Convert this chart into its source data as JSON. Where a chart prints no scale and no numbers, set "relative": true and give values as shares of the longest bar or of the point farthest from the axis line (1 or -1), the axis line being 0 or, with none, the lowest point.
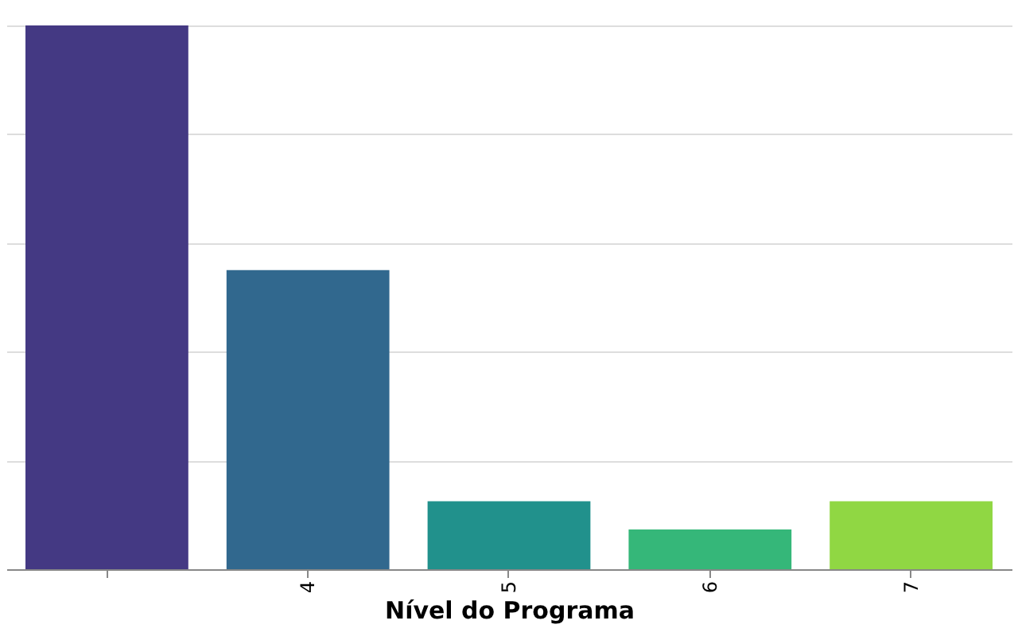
{
  "chart_data": {
    "type": "bar",
    "relative": true,
    "xlabel": "Nível do Programa",
    "categories": [
      null,
      "4",
      "5",
      "6",
      "7"
    ],
    "values": [
      1,
      0.55,
      0.125,
      0.073,
      0.125
    ],
    "colors": [
      "#443983",
      "#31688e",
      "#21918c",
      "#35b779",
      "#90d743"
    ],
    "grid": "y",
    "legend": false
  }
}
